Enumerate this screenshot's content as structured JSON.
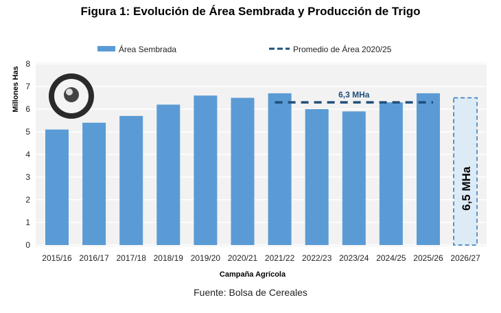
{
  "chart_data": {
    "type": "bar",
    "title": "Figura 1: Evolución de Área Sembrada y Producción de Trigo",
    "xlabel": "Campaña Agrícola",
    "ylabel": "Millones Has",
    "ylim": [
      0,
      8
    ],
    "yticks": [
      "0",
      "1",
      "2",
      "3",
      "4",
      "5",
      "6",
      "7",
      "8"
    ],
    "grid": true,
    "legend_position": "top",
    "categories": [
      "2015/16",
      "2016/17",
      "2017/18",
      "2018/19",
      "2019/20",
      "2020/21",
      "2021/22",
      "2022/23",
      "2023/24",
      "2024/25",
      "2025/26",
      "2026/27"
    ],
    "series": [
      {
        "name": "Área Sembrada",
        "values": [
          5.1,
          5.4,
          5.7,
          6.2,
          6.6,
          6.5,
          6.7,
          6.0,
          5.9,
          6.3,
          6.7,
          null
        ],
        "color": "#5b9bd5"
      },
      {
        "name": "Promedio de Área 2020/25",
        "value": 6.3,
        "from": "2021/22",
        "to": "2025/26",
        "label": "6,3 MHa",
        "color": "#1f4e79"
      }
    ],
    "projection": {
      "category": "2026/27",
      "value": 6.5,
      "label": "6,5 MHa",
      "color": "#ddebf7"
    }
  },
  "source": "Fuente: Bolsa de Cereales",
  "logo_text": "Bolsa de Cereales"
}
